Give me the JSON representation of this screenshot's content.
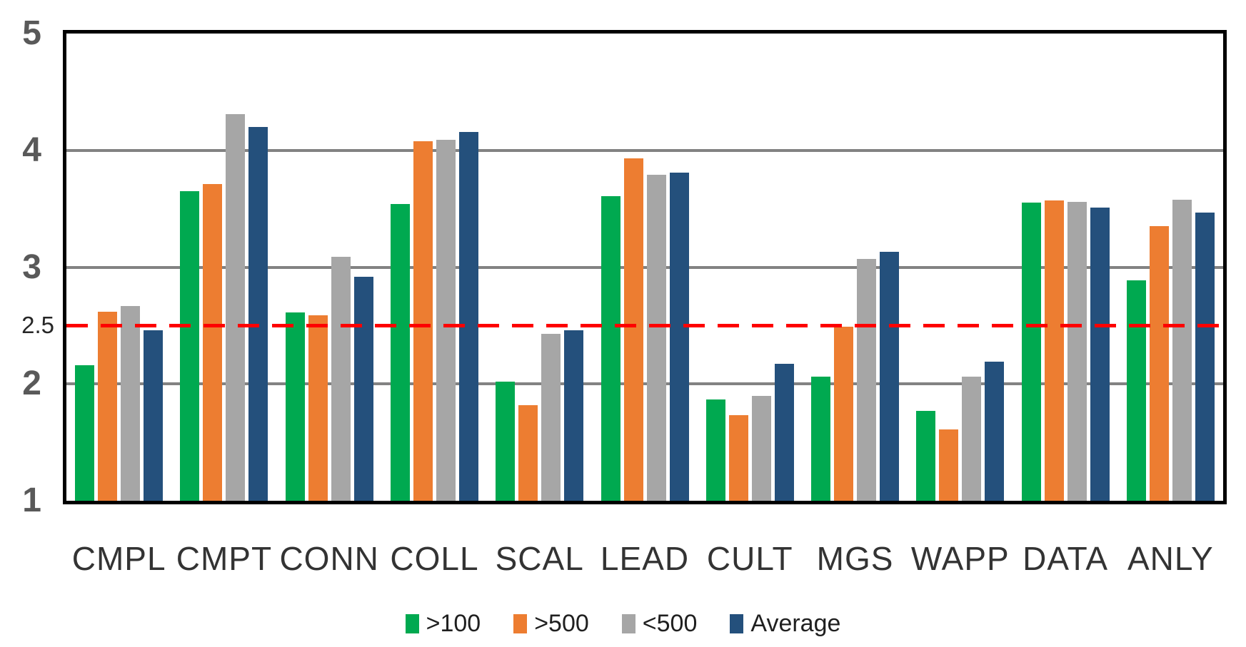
{
  "chart_data": {
    "type": "bar",
    "title": "",
    "xlabel": "",
    "ylabel": "",
    "categories": [
      "CMPL",
      "CMPT",
      "CONN",
      "COLL",
      "SCAL",
      "LEAD",
      "CULT",
      "MGS",
      "WAPP",
      "DATA",
      "ANLY"
    ],
    "series": [
      {
        "name": ">100",
        "color": "#00A950",
        "values": [
          2.16,
          3.65,
          2.61,
          3.54,
          2.02,
          3.61,
          1.87,
          2.06,
          1.77,
          3.55,
          2.89
        ]
      },
      {
        "name": ">500",
        "color": "#ED7D31",
        "values": [
          2.62,
          3.71,
          2.59,
          4.08,
          1.82,
          3.93,
          1.73,
          2.49,
          1.61,
          3.57,
          3.35
        ]
      },
      {
        "name": "<500",
        "color": "#A6A6A6",
        "values": [
          2.67,
          4.31,
          3.09,
          4.09,
          2.43,
          3.79,
          1.9,
          3.07,
          2.06,
          3.56,
          3.58
        ]
      },
      {
        "name": "Average",
        "color": "#24507C",
        "values": [
          2.46,
          4.2,
          2.92,
          4.16,
          2.46,
          3.81,
          2.17,
          3.13,
          2.19,
          3.51,
          3.47
        ]
      }
    ],
    "ylim": [
      1,
      5
    ],
    "yticks": [
      {
        "label": "5",
        "value": 5,
        "style": "major"
      },
      {
        "label": "4",
        "value": 4,
        "style": "major"
      },
      {
        "label": "3",
        "value": 3,
        "style": "major"
      },
      {
        "label": "2.5",
        "value": 2.5,
        "style": "minor"
      },
      {
        "label": "2",
        "value": 2,
        "style": "major"
      },
      {
        "label": "1",
        "value": 1,
        "style": "major"
      }
    ],
    "gridlines": [
      4,
      3,
      2
    ],
    "grid": true,
    "reference_line": {
      "value": 2.5,
      "color": "#FE0000",
      "style": "dashed"
    },
    "legend": {
      "position": "bottom"
    },
    "colors": {
      "background": "#FFFFFF",
      "axis_border": "#000000",
      "gridline": "#828282",
      "major_tick_label": "#595959",
      "minor_tick_label": "#262626",
      "category_label": "#333333",
      "legend_text": "#1F1F1F"
    }
  }
}
